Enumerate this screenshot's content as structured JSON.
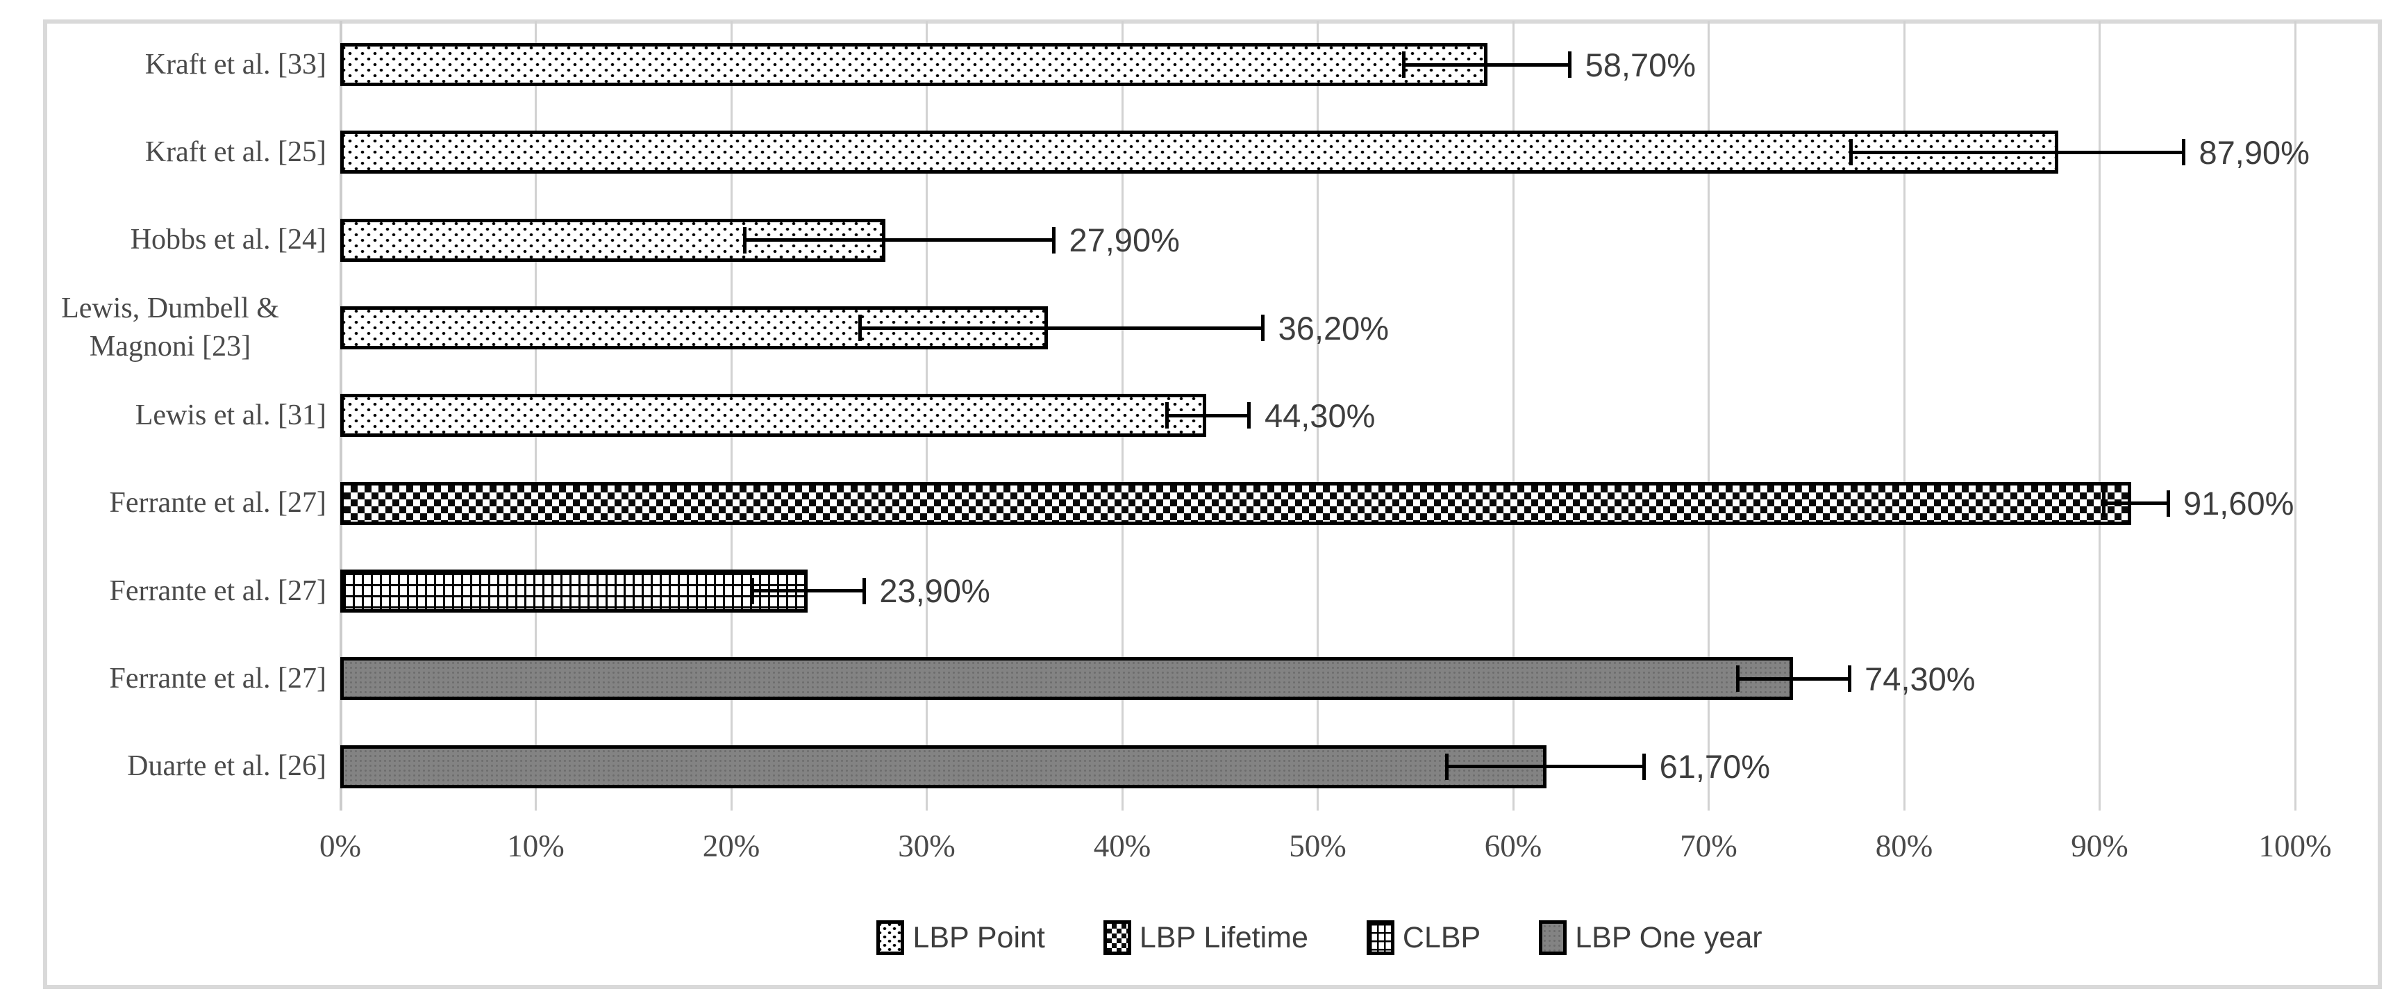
{
  "chart_data": {
    "type": "bar",
    "orientation": "horizontal",
    "title": "",
    "xlabel": "",
    "ylabel": "",
    "grid": "vertical-light-gray",
    "x_axis": {
      "min": 0,
      "max": 100,
      "tick_step": 10,
      "tick_labels": [
        "0%",
        "10%",
        "20%",
        "30%",
        "40%",
        "50%",
        "60%",
        "70%",
        "80%",
        "90%",
        "100%"
      ]
    },
    "rows": [
      {
        "label": "Kraft et al. [33]",
        "series": "LBP Point",
        "value": 58.7,
        "value_label": "58,70%",
        "error_low": 54.4,
        "error_high": 62.9
      },
      {
        "label": "Kraft et al. [25]",
        "series": "LBP Point",
        "value": 87.9,
        "value_label": "87,90%",
        "error_low": 77.3,
        "error_high": 94.3
      },
      {
        "label": "Hobbs et al. [24]",
        "series": "LBP Point",
        "value": 27.9,
        "value_label": "27,90%",
        "error_low": 20.7,
        "error_high": 36.5
      },
      {
        "label": "Lewis, Dumbell & Magnoni [23]",
        "series": "LBP Point",
        "value": 36.2,
        "value_label": "36,20%",
        "error_low": 26.6,
        "error_high": 47.2
      },
      {
        "label": "Lewis et al. [31]",
        "series": "LBP Point",
        "value": 44.3,
        "value_label": "44,30%",
        "error_low": 42.3,
        "error_high": 46.5
      },
      {
        "label": "Ferrante et al. [27]",
        "series": "LBP Lifetime",
        "value": 91.6,
        "value_label": "91,60%",
        "error_low": 90.2,
        "error_high": 93.5
      },
      {
        "label": "Ferrante et al. [27]",
        "series": "CLBP",
        "value": 23.9,
        "value_label": "23,90%",
        "error_low": 21.1,
        "error_high": 26.8
      },
      {
        "label": "Ferrante et al. [27]",
        "series": "LBP One year",
        "value": 74.3,
        "value_label": "74,30%",
        "error_low": 71.5,
        "error_high": 77.2
      },
      {
        "label": "Duarte et al. [26]",
        "series": "LBP One year",
        "value": 61.7,
        "value_label": "61,70%",
        "error_low": 56.6,
        "error_high": 66.7
      }
    ],
    "legend": {
      "position": "bottom-center",
      "items": [
        {
          "label": "LBP Point",
          "pattern": "dots"
        },
        {
          "label": "LBP Lifetime",
          "pattern": "checker"
        },
        {
          "label": "CLBP",
          "pattern": "grid"
        },
        {
          "label": "LBP One year",
          "pattern": "gray-texture"
        }
      ]
    },
    "colors": {
      "bar_border": "#000000",
      "gray_fill": "#838383",
      "gridline": "#d2d2d2",
      "frame_border": "#d9d9d9",
      "text": "#4a4a4a",
      "value_text": "#3d3d3d"
    }
  }
}
